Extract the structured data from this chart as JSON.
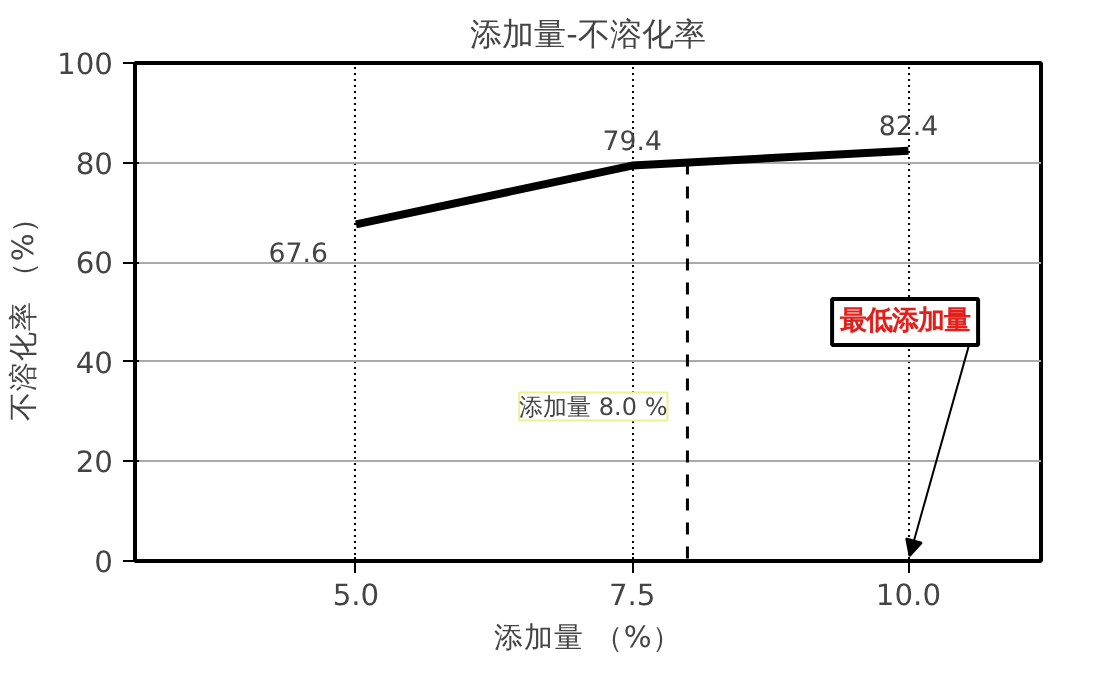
{
  "chart_data": {
    "type": "line",
    "title": "添加量-不溶化率",
    "xlabel": "添加量 （%）",
    "ylabel": "不溶化率 （%）",
    "x": [
      5.0,
      7.5,
      10.0
    ],
    "series": [
      {
        "color": "#000000",
        "values": [
          67.6,
          79.4,
          82.4
        ]
      }
    ],
    "data_labels": true,
    "xlim": [
      3,
      11.2
    ],
    "xticks": [
      {
        "value": 5.0,
        "label": "5.0"
      },
      {
        "value": 7.5,
        "label": "7.5"
      },
      {
        "value": 10.0,
        "label": "10.0"
      }
    ],
    "ylim": [
      0,
      100
    ],
    "yticks": [
      0,
      20,
      40,
      60,
      80,
      100
    ],
    "grid": true,
    "marker": "none",
    "line_style": "solid",
    "ref_lines": [
      {
        "axis": "x",
        "value": 8.0,
        "label": "添加量 8.0 %",
        "line_style": "dashed",
        "color": "#000000"
      }
    ],
    "annotations": [
      "最低添加量"
    ]
  }
}
